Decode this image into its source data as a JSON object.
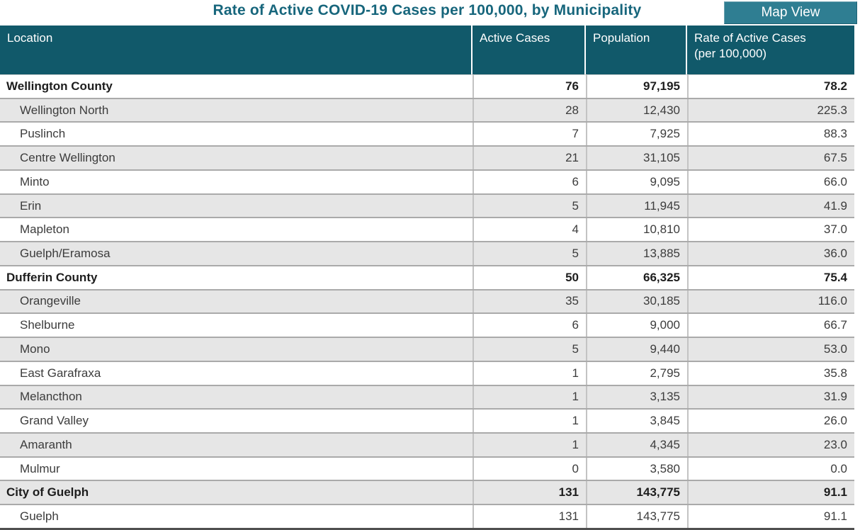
{
  "header": {
    "title": "Rate of Active COVID-19 Cases per 100,000, by Municipality",
    "map_view_label": "Map View"
  },
  "colors": {
    "header_bg": "#11596a",
    "title_text": "#17667c",
    "button_bg": "#2f7e92",
    "row_alt_bg": "#e6e6e6"
  },
  "table": {
    "columns": [
      "Location",
      "Active Cases",
      "Population",
      "Rate of Active Cases"
    ],
    "rate_column_subline": "(per 100,000)",
    "rows": [
      {
        "location": "Wellington County",
        "active_cases": "76",
        "population": "97,195",
        "rate": "78.2",
        "group": true
      },
      {
        "location": "Wellington North",
        "active_cases": "28",
        "population": "12,430",
        "rate": "225.3",
        "group": false
      },
      {
        "location": "Puslinch",
        "active_cases": "7",
        "population": "7,925",
        "rate": "88.3",
        "group": false
      },
      {
        "location": "Centre Wellington",
        "active_cases": "21",
        "population": "31,105",
        "rate": "67.5",
        "group": false
      },
      {
        "location": "Minto",
        "active_cases": "6",
        "population": "9,095",
        "rate": "66.0",
        "group": false
      },
      {
        "location": "Erin",
        "active_cases": "5",
        "population": "11,945",
        "rate": "41.9",
        "group": false
      },
      {
        "location": "Mapleton",
        "active_cases": "4",
        "population": "10,810",
        "rate": "37.0",
        "group": false
      },
      {
        "location": "Guelph/Eramosa",
        "active_cases": "5",
        "population": "13,885",
        "rate": "36.0",
        "group": false
      },
      {
        "location": "Dufferin County",
        "active_cases": "50",
        "population": "66,325",
        "rate": "75.4",
        "group": true
      },
      {
        "location": "Orangeville",
        "active_cases": "35",
        "population": "30,185",
        "rate": "116.0",
        "group": false
      },
      {
        "location": "Shelburne",
        "active_cases": "6",
        "population": "9,000",
        "rate": "66.7",
        "group": false
      },
      {
        "location": "Mono",
        "active_cases": "5",
        "population": "9,440",
        "rate": "53.0",
        "group": false
      },
      {
        "location": "East Garafraxa",
        "active_cases": "1",
        "population": "2,795",
        "rate": "35.8",
        "group": false
      },
      {
        "location": "Melancthon",
        "active_cases": "1",
        "population": "3,135",
        "rate": "31.9",
        "group": false
      },
      {
        "location": "Grand Valley",
        "active_cases": "1",
        "population": "3,845",
        "rate": "26.0",
        "group": false
      },
      {
        "location": "Amaranth",
        "active_cases": "1",
        "population": "4,345",
        "rate": "23.0",
        "group": false
      },
      {
        "location": "Mulmur",
        "active_cases": "0",
        "population": "3,580",
        "rate": "0.0",
        "group": false
      },
      {
        "location": "City of Guelph",
        "active_cases": "131",
        "population": "143,775",
        "rate": "91.1",
        "group": true
      },
      {
        "location": "Guelph",
        "active_cases": "131",
        "population": "143,775",
        "rate": "91.1",
        "group": false
      }
    ]
  }
}
